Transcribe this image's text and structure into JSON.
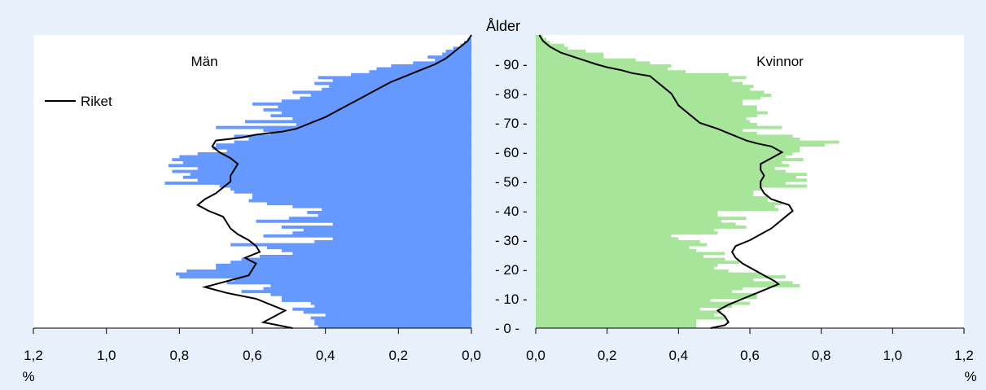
{
  "chart_data": {
    "type": "bar",
    "subtype": "population-pyramid",
    "title": "",
    "center_label": "Ålder",
    "unit_label": "%",
    "legend": {
      "line_label": "Riket",
      "placement": "upper-left of left panel"
    },
    "age_ticks": [
      "0",
      "10",
      "20",
      "30",
      "40",
      "50",
      "60",
      "70",
      "80",
      "90"
    ],
    "x_ticks_left": [
      "1,2",
      "1,0",
      "0,8",
      "0,6",
      "0,4",
      "0,2",
      "0,0"
    ],
    "x_ticks_right": [
      "0,0",
      "0,2",
      "0,4",
      "0,6",
      "0,8",
      "1,0",
      "1,2"
    ],
    "xlim": [
      0,
      1.2
    ],
    "age_range": [
      0,
      100
    ],
    "colors": {
      "men_bars": "#6699ff",
      "women_bars": "#a6e59a",
      "line": "#000000",
      "background": "#e8f0fc"
    },
    "panels": [
      {
        "name": "Män",
        "side": "left",
        "bar_values": [
          0.42,
          0.43,
          0.43,
          0.44,
          0.4,
          0.46,
          0.49,
          0.43,
          0.44,
          0.52,
          0.52,
          0.55,
          0.63,
          0.57,
          0.55,
          0.67,
          0.65,
          0.8,
          0.81,
          0.78,
          0.7,
          0.7,
          0.66,
          0.63,
          0.58,
          0.49,
          0.52,
          0.56,
          0.66,
          0.43,
          0.38,
          0.57,
          0.49,
          0.46,
          0.52,
          0.38,
          0.59,
          0.5,
          0.42,
          0.45,
          0.41,
          0.49,
          0.56,
          0.61,
          0.6,
          0.6,
          0.65,
          0.66,
          0.69,
          0.84,
          0.75,
          0.79,
          0.77,
          0.82,
          0.75,
          0.83,
          0.79,
          0.82,
          0.8,
          0.75,
          0.67,
          0.71,
          0.7,
          0.65,
          0.61,
          0.65,
          0.55,
          0.57,
          0.7,
          0.48,
          0.62,
          0.49,
          0.55,
          0.52,
          0.57,
          0.53,
          0.6,
          0.52,
          0.47,
          0.44,
          0.49,
          0.41,
          0.39,
          0.43,
          0.38,
          0.42,
          0.33,
          0.28,
          0.26,
          0.22,
          0.16,
          0.1,
          0.12,
          0.08,
          0.07,
          0.05,
          0.03,
          0.02,
          0.01,
          0.0
        ],
        "riket_line": [
          {
            "age": 0,
            "value": 0.49
          },
          {
            "age": 2,
            "value": 0.57
          },
          {
            "age": 4,
            "value": 0.54
          },
          {
            "age": 6,
            "value": 0.51
          },
          {
            "age": 8,
            "value": 0.55
          },
          {
            "age": 10,
            "value": 0.59
          },
          {
            "age": 12,
            "value": 0.67
          },
          {
            "age": 14,
            "value": 0.73
          },
          {
            "age": 16,
            "value": 0.67
          },
          {
            "age": 18,
            "value": 0.61
          },
          {
            "age": 20,
            "value": 0.6
          },
          {
            "age": 22,
            "value": 0.59
          },
          {
            "age": 24,
            "value": 0.62
          },
          {
            "age": 26,
            "value": 0.58
          },
          {
            "age": 28,
            "value": 0.59
          },
          {
            "age": 30,
            "value": 0.61
          },
          {
            "age": 32,
            "value": 0.64
          },
          {
            "age": 34,
            "value": 0.66
          },
          {
            "age": 36,
            "value": 0.67
          },
          {
            "age": 38,
            "value": 0.68
          },
          {
            "age": 40,
            "value": 0.72
          },
          {
            "age": 42,
            "value": 0.75
          },
          {
            "age": 44,
            "value": 0.73
          },
          {
            "age": 46,
            "value": 0.7
          },
          {
            "age": 48,
            "value": 0.68
          },
          {
            "age": 50,
            "value": 0.66
          },
          {
            "age": 52,
            "value": 0.66
          },
          {
            "age": 54,
            "value": 0.65
          },
          {
            "age": 56,
            "value": 0.64
          },
          {
            "age": 58,
            "value": 0.66
          },
          {
            "age": 60,
            "value": 0.69
          },
          {
            "age": 62,
            "value": 0.71
          },
          {
            "age": 64,
            "value": 0.7
          },
          {
            "age": 65,
            "value": 0.63
          },
          {
            "age": 66,
            "value": 0.59
          },
          {
            "age": 67,
            "value": 0.52
          },
          {
            "age": 68,
            "value": 0.48
          },
          {
            "age": 70,
            "value": 0.44
          },
          {
            "age": 72,
            "value": 0.4
          },
          {
            "age": 74,
            "value": 0.37
          },
          {
            "age": 76,
            "value": 0.34
          },
          {
            "age": 78,
            "value": 0.31
          },
          {
            "age": 80,
            "value": 0.28
          },
          {
            "age": 82,
            "value": 0.25
          },
          {
            "age": 84,
            "value": 0.22
          },
          {
            "age": 86,
            "value": 0.18
          },
          {
            "age": 88,
            "value": 0.14
          },
          {
            "age": 90,
            "value": 0.1
          },
          {
            "age": 92,
            "value": 0.07
          },
          {
            "age": 94,
            "value": 0.05
          },
          {
            "age": 96,
            "value": 0.03
          },
          {
            "age": 98,
            "value": 0.01
          },
          {
            "age": 100,
            "value": 0.0
          }
        ]
      },
      {
        "name": "Kvinnor",
        "side": "right",
        "bar_values": [
          0.45,
          0.45,
          0.45,
          0.53,
          0.5,
          0.52,
          0.46,
          0.55,
          0.6,
          0.49,
          0.62,
          0.62,
          0.55,
          0.58,
          0.74,
          0.72,
          0.61,
          0.7,
          0.63,
          0.54,
          0.5,
          0.51,
          0.57,
          0.53,
          0.47,
          0.53,
          0.45,
          0.43,
          0.48,
          0.46,
          0.4,
          0.38,
          0.51,
          0.5,
          0.59,
          0.56,
          0.52,
          0.59,
          0.51,
          0.51,
          0.68,
          0.67,
          0.69,
          0.65,
          0.65,
          0.61,
          0.61,
          0.63,
          0.76,
          0.7,
          0.76,
          0.73,
          0.76,
          0.7,
          0.67,
          0.71,
          0.69,
          0.75,
          0.7,
          0.72,
          0.74,
          0.74,
          0.81,
          0.85,
          0.74,
          0.72,
          0.62,
          0.58,
          0.69,
          0.62,
          0.6,
          0.59,
          0.62,
          0.65,
          0.62,
          0.62,
          0.58,
          0.58,
          0.63,
          0.66,
          0.64,
          0.6,
          0.61,
          0.58,
          0.55,
          0.59,
          0.54,
          0.42,
          0.37,
          0.38,
          0.32,
          0.28,
          0.19,
          0.19,
          0.14,
          0.09,
          0.08,
          0.04,
          0.03,
          0.02
        ],
        "riket_line": [
          {
            "age": 0,
            "value": 0.49
          },
          {
            "age": 1,
            "value": 0.53
          },
          {
            "age": 2,
            "value": 0.54
          },
          {
            "age": 4,
            "value": 0.53
          },
          {
            "age": 6,
            "value": 0.51
          },
          {
            "age": 8,
            "value": 0.54
          },
          {
            "age": 10,
            "value": 0.58
          },
          {
            "age": 12,
            "value": 0.62
          },
          {
            "age": 14,
            "value": 0.66
          },
          {
            "age": 15,
            "value": 0.68
          },
          {
            "age": 16,
            "value": 0.67
          },
          {
            "age": 18,
            "value": 0.64
          },
          {
            "age": 20,
            "value": 0.61
          },
          {
            "age": 22,
            "value": 0.58
          },
          {
            "age": 24,
            "value": 0.56
          },
          {
            "age": 26,
            "value": 0.55
          },
          {
            "age": 28,
            "value": 0.56
          },
          {
            "age": 30,
            "value": 0.6
          },
          {
            "age": 32,
            "value": 0.63
          },
          {
            "age": 34,
            "value": 0.66
          },
          {
            "age": 36,
            "value": 0.68
          },
          {
            "age": 38,
            "value": 0.7
          },
          {
            "age": 40,
            "value": 0.72
          },
          {
            "age": 42,
            "value": 0.71
          },
          {
            "age": 44,
            "value": 0.66
          },
          {
            "age": 46,
            "value": 0.64
          },
          {
            "age": 48,
            "value": 0.63
          },
          {
            "age": 50,
            "value": 0.63
          },
          {
            "age": 52,
            "value": 0.64
          },
          {
            "age": 54,
            "value": 0.63
          },
          {
            "age": 56,
            "value": 0.63
          },
          {
            "age": 58,
            "value": 0.66
          },
          {
            "age": 60,
            "value": 0.69
          },
          {
            "age": 62,
            "value": 0.66
          },
          {
            "age": 63,
            "value": 0.62
          },
          {
            "age": 64,
            "value": 0.59
          },
          {
            "age": 65,
            "value": 0.57
          },
          {
            "age": 66,
            "value": 0.55
          },
          {
            "age": 68,
            "value": 0.51
          },
          {
            "age": 70,
            "value": 0.46
          },
          {
            "age": 72,
            "value": 0.44
          },
          {
            "age": 74,
            "value": 0.42
          },
          {
            "age": 76,
            "value": 0.4
          },
          {
            "age": 78,
            "value": 0.39
          },
          {
            "age": 80,
            "value": 0.38
          },
          {
            "age": 82,
            "value": 0.36
          },
          {
            "age": 84,
            "value": 0.34
          },
          {
            "age": 86,
            "value": 0.32
          },
          {
            "age": 87,
            "value": 0.27
          },
          {
            "age": 88,
            "value": 0.24
          },
          {
            "age": 89,
            "value": 0.2
          },
          {
            "age": 90,
            "value": 0.17
          },
          {
            "age": 92,
            "value": 0.12
          },
          {
            "age": 94,
            "value": 0.07
          },
          {
            "age": 96,
            "value": 0.04
          },
          {
            "age": 98,
            "value": 0.02
          },
          {
            "age": 100,
            "value": 0.01
          }
        ]
      }
    ]
  }
}
